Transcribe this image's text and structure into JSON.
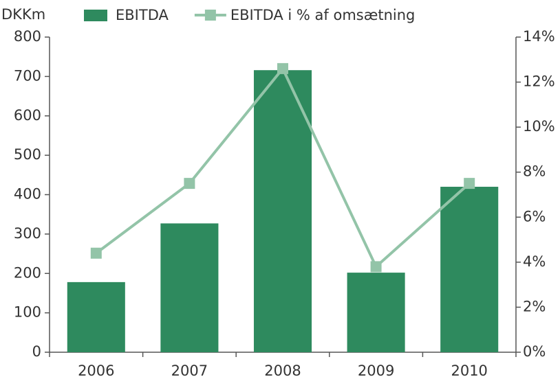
{
  "chart_data": {
    "type": "bar_line",
    "y_label": "DKKm",
    "categories": [
      "2006",
      "2007",
      "2008",
      "2009",
      "2010"
    ],
    "series": [
      {
        "name": "EBITDA",
        "color": "#2e8a5e",
        "type": "bar",
        "values": [
          178,
          327,
          716,
          202,
          420
        ]
      },
      {
        "name": "EBITDA i % af omsætning",
        "color": "#93c4a8",
        "type": "line",
        "axis": "y2",
        "values": [
          4.4,
          7.5,
          12.6,
          3.8,
          7.5
        ]
      }
    ],
    "ylim": [
      0,
      800
    ],
    "yticks": [
      0,
      100,
      200,
      300,
      400,
      500,
      600,
      700,
      800
    ],
    "y2lim": [
      0,
      14
    ],
    "y2ticks": [
      {
        "value": 0,
        "label": "0%"
      },
      {
        "value": 2,
        "label": "2%"
      },
      {
        "value": 4,
        "label": "4%"
      },
      {
        "value": 6,
        "label": "6%"
      },
      {
        "value": 8,
        "label": "8%"
      },
      {
        "value": 10,
        "label": "10%"
      },
      {
        "value": 12,
        "label": "12%"
      },
      {
        "value": 14,
        "label": "14%"
      }
    ],
    "legend": "top"
  }
}
